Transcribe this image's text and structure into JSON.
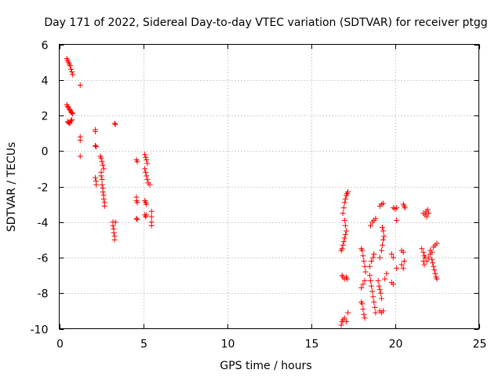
{
  "chart_data": {
    "type": "scatter",
    "title": "Day 171 of 2022, Sidereal Day-to-day VTEC variation (SDTVAR) for receiver ptgg",
    "xlabel": "GPS time / hours",
    "ylabel": "SDTVAR / TECUs",
    "xlim": [
      0,
      25
    ],
    "ylim": [
      -10,
      6
    ],
    "xticks": [
      0,
      5,
      10,
      15,
      20,
      25
    ],
    "yticks": [
      -10,
      -8,
      -6,
      -4,
      -2,
      0,
      2,
      4,
      6
    ],
    "grid": true,
    "marker": "+",
    "color": "#ff0000",
    "series": [
      {
        "name": "SDTVAR",
        "points": [
          [
            0.45,
            5.2
          ],
          [
            0.5,
            5.1
          ],
          [
            0.55,
            5.0
          ],
          [
            0.6,
            4.9
          ],
          [
            0.65,
            4.8
          ],
          [
            0.7,
            4.6
          ],
          [
            0.75,
            4.45
          ],
          [
            0.8,
            4.3
          ],
          [
            0.45,
            2.6
          ],
          [
            0.5,
            2.5
          ],
          [
            0.55,
            2.45
          ],
          [
            0.6,
            2.35
          ],
          [
            0.65,
            2.3
          ],
          [
            0.7,
            2.2
          ],
          [
            0.75,
            2.15
          ],
          [
            0.8,
            2.1
          ],
          [
            0.5,
            1.65
          ],
          [
            0.55,
            1.6
          ],
          [
            0.6,
            1.55
          ],
          [
            0.65,
            1.6
          ],
          [
            0.7,
            1.7
          ],
          [
            0.75,
            1.75
          ],
          [
            1.25,
            3.7
          ],
          [
            1.25,
            0.8
          ],
          [
            1.25,
            0.6
          ],
          [
            1.25,
            -0.3
          ],
          [
            2.15,
            1.2
          ],
          [
            2.15,
            1.1
          ],
          [
            2.15,
            0.3
          ],
          [
            2.2,
            0.25
          ],
          [
            2.15,
            -1.5
          ],
          [
            2.2,
            -1.7
          ],
          [
            2.2,
            -1.9
          ],
          [
            2.45,
            -0.3
          ],
          [
            2.5,
            -0.4
          ],
          [
            2.55,
            -0.6
          ],
          [
            2.6,
            -0.8
          ],
          [
            2.65,
            -1.0
          ],
          [
            2.5,
            -1.2
          ],
          [
            2.5,
            -1.4
          ],
          [
            2.55,
            -1.6
          ],
          [
            2.55,
            -1.9
          ],
          [
            2.6,
            -2.1
          ],
          [
            2.6,
            -2.3
          ],
          [
            2.65,
            -2.5
          ],
          [
            2.65,
            -2.7
          ],
          [
            2.7,
            -2.9
          ],
          [
            2.7,
            -3.1
          ],
          [
            3.3,
            1.55
          ],
          [
            3.35,
            1.5
          ],
          [
            3.2,
            -4.0
          ],
          [
            3.2,
            -4.2
          ],
          [
            3.25,
            -4.4
          ],
          [
            3.25,
            -4.6
          ],
          [
            3.3,
            -4.8
          ],
          [
            3.3,
            -5.0
          ],
          [
            3.35,
            -4.0
          ],
          [
            4.6,
            -0.5
          ],
          [
            4.65,
            -0.6
          ],
          [
            4.6,
            -2.6
          ],
          [
            4.6,
            -2.8
          ],
          [
            4.65,
            -2.9
          ],
          [
            4.6,
            -3.8
          ],
          [
            4.65,
            -3.85
          ],
          [
            5.1,
            -0.2
          ],
          [
            5.15,
            -0.35
          ],
          [
            5.2,
            -0.5
          ],
          [
            5.25,
            -0.7
          ],
          [
            5.1,
            -1.0
          ],
          [
            5.15,
            -1.2
          ],
          [
            5.2,
            -1.4
          ],
          [
            5.25,
            -1.6
          ],
          [
            5.3,
            -1.8
          ],
          [
            5.1,
            -2.8
          ],
          [
            5.15,
            -2.9
          ],
          [
            5.2,
            -3.0
          ],
          [
            5.1,
            -3.6
          ],
          [
            5.15,
            -3.7
          ],
          [
            5.2,
            -3.6
          ],
          [
            5.4,
            -1.9
          ],
          [
            5.5,
            -3.4
          ],
          [
            5.5,
            -3.7
          ],
          [
            5.5,
            -4.0
          ],
          [
            5.5,
            -4.2
          ],
          [
            16.8,
            -9.8
          ],
          [
            16.85,
            -9.6
          ],
          [
            16.9,
            -9.5
          ],
          [
            17.0,
            -9.4
          ],
          [
            17.1,
            -9.6
          ],
          [
            17.2,
            -9.1
          ],
          [
            16.85,
            -7.0
          ],
          [
            16.9,
            -7.1
          ],
          [
            17.0,
            -7.2
          ],
          [
            17.1,
            -7.1
          ],
          [
            17.15,
            -7.2
          ],
          [
            16.8,
            -5.6
          ],
          [
            16.85,
            -5.5
          ],
          [
            16.9,
            -5.3
          ],
          [
            16.95,
            -5.1
          ],
          [
            17.0,
            -4.9
          ],
          [
            17.05,
            -4.7
          ],
          [
            17.1,
            -4.5
          ],
          [
            17.05,
            -4.2
          ],
          [
            17.0,
            -3.9
          ],
          [
            16.9,
            -3.5
          ],
          [
            16.95,
            -3.2
          ],
          [
            17.0,
            -2.9
          ],
          [
            17.05,
            -2.7
          ],
          [
            17.1,
            -2.5
          ],
          [
            17.15,
            -2.4
          ],
          [
            17.2,
            -2.3
          ],
          [
            18.0,
            -5.5
          ],
          [
            18.05,
            -5.6
          ],
          [
            18.1,
            -5.9
          ],
          [
            18.15,
            -6.2
          ],
          [
            18.2,
            -6.5
          ],
          [
            18.25,
            -6.8
          ],
          [
            18.0,
            -7.7
          ],
          [
            18.1,
            -7.5
          ],
          [
            18.2,
            -7.3
          ],
          [
            18.0,
            -8.5
          ],
          [
            18.05,
            -8.6
          ],
          [
            18.1,
            -8.9
          ],
          [
            18.15,
            -9.2
          ],
          [
            18.2,
            -9.4
          ],
          [
            18.5,
            -7.0
          ],
          [
            18.55,
            -7.3
          ],
          [
            18.6,
            -7.6
          ],
          [
            18.65,
            -7.9
          ],
          [
            18.7,
            -8.2
          ],
          [
            18.75,
            -8.5
          ],
          [
            18.8,
            -8.8
          ],
          [
            18.85,
            -9.1
          ],
          [
            18.5,
            -6.5
          ],
          [
            18.6,
            -6.2
          ],
          [
            18.7,
            -6.0
          ],
          [
            18.75,
            -5.8
          ],
          [
            18.55,
            -4.2
          ],
          [
            18.65,
            -4.0
          ],
          [
            18.75,
            -3.9
          ],
          [
            18.85,
            -3.8
          ],
          [
            19.0,
            -7.3
          ],
          [
            19.05,
            -7.6
          ],
          [
            19.1,
            -7.8
          ],
          [
            19.15,
            -8.0
          ],
          [
            19.2,
            -8.3
          ],
          [
            19.1,
            -9.0
          ],
          [
            19.2,
            -9.1
          ],
          [
            19.3,
            -9.0
          ],
          [
            19.1,
            -6.0
          ],
          [
            19.2,
            -5.6
          ],
          [
            19.25,
            -5.3
          ],
          [
            19.3,
            -5.0
          ],
          [
            19.35,
            -4.8
          ],
          [
            19.3,
            -4.5
          ],
          [
            19.25,
            -4.3
          ],
          [
            19.1,
            -3.1
          ],
          [
            19.2,
            -3.0
          ],
          [
            19.3,
            -2.95
          ],
          [
            19.5,
            -6.9
          ],
          [
            19.4,
            -7.2
          ],
          [
            19.9,
            -3.2
          ],
          [
            20.0,
            -3.25
          ],
          [
            20.1,
            -3.2
          ],
          [
            19.8,
            -5.8
          ],
          [
            19.9,
            -6.0
          ],
          [
            19.8,
            -7.4
          ],
          [
            19.9,
            -7.5
          ],
          [
            20.1,
            -3.9
          ],
          [
            20.1,
            -6.6
          ],
          [
            20.5,
            -3.0
          ],
          [
            20.55,
            -3.1
          ],
          [
            20.6,
            -3.2
          ],
          [
            20.4,
            -5.6
          ],
          [
            20.5,
            -5.7
          ],
          [
            20.4,
            -6.4
          ],
          [
            20.5,
            -6.6
          ],
          [
            20.55,
            -6.2
          ],
          [
            21.7,
            -3.5
          ],
          [
            21.8,
            -3.6
          ],
          [
            21.9,
            -3.7
          ],
          [
            22.0,
            -3.5
          ],
          [
            21.95,
            -3.3
          ],
          [
            21.85,
            -3.4
          ],
          [
            21.6,
            -5.5
          ],
          [
            21.7,
            -5.7
          ],
          [
            21.75,
            -5.9
          ],
          [
            21.8,
            -6.0
          ],
          [
            21.7,
            -6.2
          ],
          [
            21.75,
            -6.4
          ],
          [
            22.1,
            -5.8
          ],
          [
            22.2,
            -6.1
          ],
          [
            22.25,
            -6.3
          ],
          [
            22.3,
            -6.5
          ],
          [
            22.35,
            -6.7
          ],
          [
            22.4,
            -6.9
          ],
          [
            22.45,
            -7.1
          ],
          [
            22.5,
            -7.2
          ],
          [
            22.1,
            -5.6
          ],
          [
            22.2,
            -5.7
          ],
          [
            22.3,
            -5.4
          ],
          [
            22.4,
            -5.3
          ],
          [
            22.5,
            -5.2
          ],
          [
            22.0,
            -6.0
          ],
          [
            21.9,
            -6.2
          ]
        ]
      }
    ]
  }
}
